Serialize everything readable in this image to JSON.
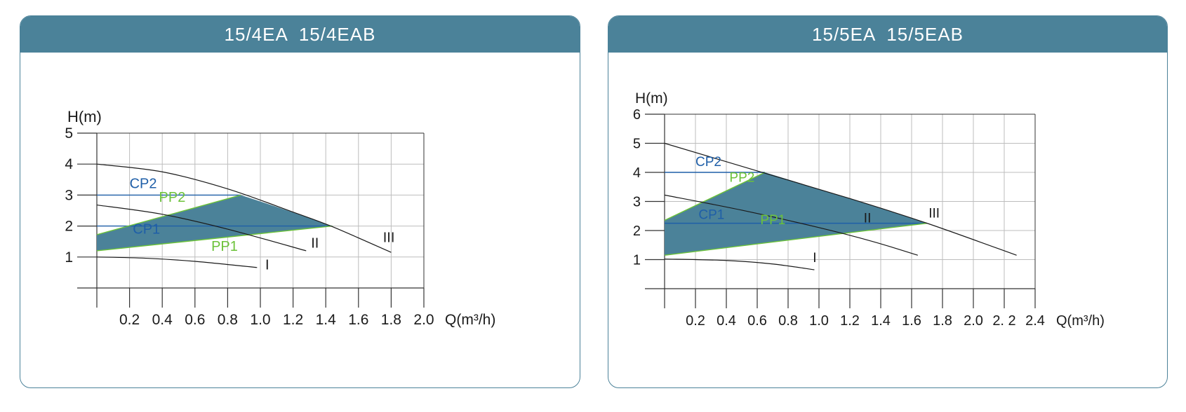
{
  "colors": {
    "header": "#4b8299",
    "border": "#4c8299",
    "area": "#4b8299",
    "cp": "#1f5fa8",
    "pp": "#6cc23a",
    "curve": "#1a1a1a",
    "grid": "#bdbdbd"
  },
  "chart_data": [
    {
      "type": "line",
      "title": "15/4EA  15/4EAB",
      "ylabel": "H(m)",
      "xlabel": "Q(m³/h)",
      "xlim": [
        0,
        2.0
      ],
      "ylim": [
        0,
        5
      ],
      "x_ticks": [
        0.2,
        0.4,
        0.6,
        0.8,
        1.0,
        1.2,
        1.4,
        1.6,
        1.8,
        2.0
      ],
      "x_tick_labels": [
        "0.2",
        "0.4",
        "0.6",
        "0.8",
        "1.0",
        "1.2",
        "1.4",
        "1.6",
        "1.8",
        "2.0"
      ],
      "y_ticks": [
        1,
        2,
        3,
        4,
        5
      ],
      "y_tick_labels": [
        "1",
        "2",
        "3",
        "4",
        "5"
      ],
      "grid": true,
      "curves": [
        {
          "name": "I",
          "x": [
            0,
            0.3,
            0.6,
            0.98
          ],
          "y": [
            1.0,
            0.96,
            0.86,
            0.66
          ]
        },
        {
          "name": "II",
          "x": [
            0,
            0.4,
            0.8,
            1.28
          ],
          "y": [
            2.68,
            2.38,
            1.9,
            1.2
          ]
        },
        {
          "name": "III",
          "x": [
            0,
            0.4,
            0.8,
            1.2,
            1.44,
            1.8
          ],
          "y": [
            4.0,
            3.75,
            3.2,
            2.45,
            1.98,
            1.15
          ]
        }
      ],
      "control_lines": [
        {
          "name": "CP2",
          "x": [
            0,
            0.88
          ],
          "y": [
            3.0,
            3.0
          ]
        },
        {
          "name": "CP1",
          "x": [
            0,
            1.44
          ],
          "y": [
            2.0,
            2.0
          ]
        },
        {
          "name": "PP2",
          "x": [
            0,
            0.88
          ],
          "y": [
            1.72,
            3.0
          ]
        },
        {
          "name": "PP1",
          "x": [
            0,
            1.44
          ],
          "y": [
            1.2,
            2.0
          ]
        }
      ],
      "area": {
        "x": [
          0,
          0.88,
          1.1,
          1.44,
          0
        ],
        "y": [
          1.72,
          3.0,
          2.62,
          2.0,
          1.2
        ]
      },
      "labels": [
        {
          "text": "CP2",
          "x": 0.2,
          "y": 3.22,
          "color": "cp"
        },
        {
          "text": "PP2",
          "x": 0.38,
          "y": 2.78,
          "color": "pp"
        },
        {
          "text": "CP1",
          "x": 0.22,
          "y": 1.75,
          "color": "cp"
        },
        {
          "text": "PP1",
          "x": 0.7,
          "y": 1.2,
          "color": "pp"
        },
        {
          "text": "I",
          "x": 1.03,
          "y": 0.6,
          "color": "curve"
        },
        {
          "text": "II",
          "x": 1.31,
          "y": 1.3,
          "color": "curve"
        },
        {
          "text": "III",
          "x": 1.75,
          "y": 1.48,
          "color": "curve"
        }
      ]
    },
    {
      "type": "line",
      "title": "15/5EA  15/5EAB",
      "ylabel": "H(m)",
      "xlabel": "Q(m³/h)",
      "xlim": [
        0,
        2.4
      ],
      "ylim": [
        0,
        6
      ],
      "x_ticks": [
        0.2,
        0.4,
        0.6,
        0.8,
        1.0,
        1.2,
        1.4,
        1.6,
        1.8,
        2.0,
        2.2,
        2.4
      ],
      "x_tick_labels": [
        "0.2",
        "0.4",
        "0.6",
        "0.8",
        "1.0",
        "1.2",
        "1.4",
        "1.6",
        "1.8",
        "2.0",
        "2. 2",
        "2.4"
      ],
      "y_ticks": [
        1,
        2,
        3,
        4,
        5,
        6
      ],
      "y_tick_labels": [
        "1",
        "2",
        "3",
        "4",
        "5",
        "6"
      ],
      "grid": true,
      "curves": [
        {
          "name": "I",
          "x": [
            0,
            0.4,
            0.7,
            0.97
          ],
          "y": [
            1.02,
            0.97,
            0.85,
            0.65
          ]
        },
        {
          "name": "II",
          "x": [
            0,
            0.5,
            1.0,
            1.35,
            1.64
          ],
          "y": [
            3.22,
            2.7,
            2.1,
            1.62,
            1.15
          ]
        },
        {
          "name": "III",
          "x": [
            0,
            0.6,
            1.2,
            1.7,
            2.28
          ],
          "y": [
            5.0,
            4.05,
            3.1,
            2.25,
            1.15
          ]
        }
      ],
      "control_lines": [
        {
          "name": "CP2",
          "x": [
            0,
            0.65
          ],
          "y": [
            4.0,
            4.0
          ]
        },
        {
          "name": "CP1",
          "x": [
            0,
            1.7
          ],
          "y": [
            2.25,
            2.25
          ]
        },
        {
          "name": "PP2",
          "x": [
            0,
            0.65
          ],
          "y": [
            2.35,
            4.0
          ]
        },
        {
          "name": "PP1",
          "x": [
            0,
            1.7
          ],
          "y": [
            1.15,
            2.25
          ]
        }
      ],
      "area": {
        "x": [
          0,
          0.65,
          1.2,
          1.7,
          0
        ],
        "y": [
          2.35,
          4.0,
          3.1,
          2.25,
          1.15
        ]
      },
      "labels": [
        {
          "text": "CP2",
          "x": 0.2,
          "y": 4.22,
          "color": "cp"
        },
        {
          "text": "PP2",
          "x": 0.42,
          "y": 3.68,
          "color": "pp"
        },
        {
          "text": "CP1",
          "x": 0.22,
          "y": 2.4,
          "color": "cp"
        },
        {
          "text": "PP1",
          "x": 0.62,
          "y": 2.22,
          "color": "pp"
        },
        {
          "text": "I",
          "x": 0.96,
          "y": 0.92,
          "color": "curve"
        },
        {
          "text": "II",
          "x": 1.29,
          "y": 2.28,
          "color": "curve"
        },
        {
          "text": "III",
          "x": 1.71,
          "y": 2.45,
          "color": "curve"
        }
      ]
    }
  ]
}
